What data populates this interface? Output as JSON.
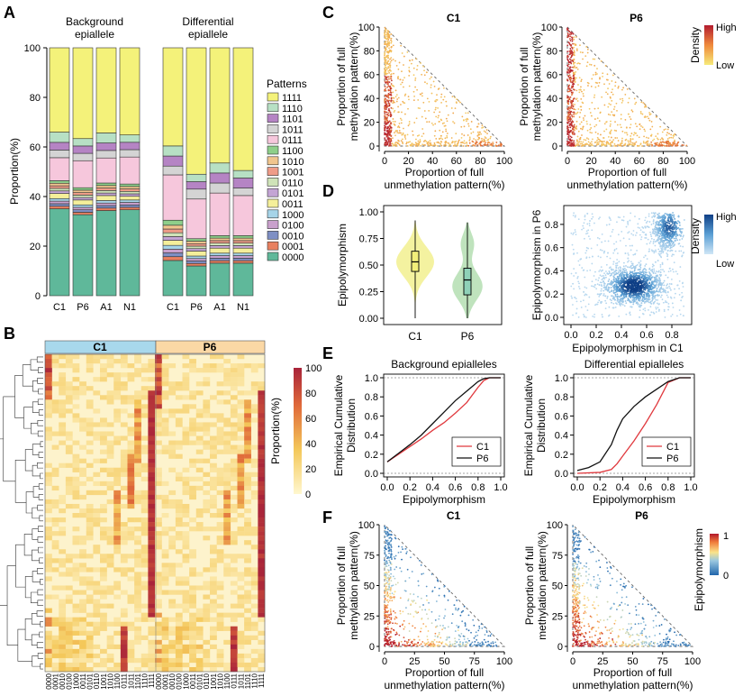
{
  "figure": {
    "panel_labels": [
      "A",
      "B",
      "C",
      "D",
      "E",
      "F"
    ]
  },
  "panel_a": {
    "titles": [
      "Background epiallele",
      "Differential epiallele"
    ],
    "ylabel": "Proportion(%)",
    "yticks": [
      "0",
      "20",
      "40",
      "60",
      "80",
      "100"
    ],
    "samples": [
      "C1",
      "P6",
      "A1",
      "N1"
    ],
    "legend_title": "Patterns",
    "patterns": [
      "0000",
      "0001",
      "0010",
      "0100",
      "1000",
      "0011",
      "0101",
      "0110",
      "1001",
      "1010",
      "1100",
      "0111",
      "1011",
      "1101",
      "1110",
      "1111"
    ],
    "colors": [
      "#5fb89a",
      "#e8805f",
      "#7e8fc4",
      "#c9a0cc",
      "#a6d4e8",
      "#f5ef9a",
      "#c3a4d4",
      "#cfe3b8",
      "#ef9c88",
      "#f0c58e",
      "#8ecf8a",
      "#f6c7dc",
      "#d4d4d4",
      "#b584c4",
      "#b7e0c4",
      "#f4f27a"
    ]
  },
  "panel_b": {
    "groups": [
      "C1",
      "P6"
    ],
    "group_colors": [
      "#a8d8ec",
      "#fbd8a5"
    ],
    "legend_title": "Proportion(%)",
    "legend_ticks": [
      "0",
      "20",
      "40",
      "60",
      "80",
      "100"
    ],
    "col_labels": [
      "0000",
      "0001",
      "0010",
      "0100",
      "1000",
      "0011",
      "0101",
      "0110",
      "1001",
      "1010",
      "1100",
      "0111",
      "1011",
      "1101",
      "1110",
      "1111"
    ]
  },
  "panel_c": {
    "titles": [
      "C1",
      "P6"
    ],
    "ylabel": [
      "Proportion of full",
      "methylation pattern(%)"
    ],
    "xlabel": [
      "Proportion of full",
      "unmethylation pattern(%)"
    ],
    "ticks": [
      "0",
      "20",
      "40",
      "60",
      "80",
      "100"
    ],
    "legend_title": "Density",
    "legend_high": "High",
    "legend_low": "Low"
  },
  "panel_d": {
    "violin_ylabel": "Epipolymorphism",
    "violin_yticks": [
      "0.00",
      "0.25",
      "0.50",
      "0.75",
      "1.00"
    ],
    "violin_groups": [
      "C1",
      "P6"
    ],
    "scatter_xlabel": "Epipolymorphism in C1",
    "scatter_ylabel": "Epipolymorphism in P6",
    "scatter_ticks": [
      "0.0",
      "0.2",
      "0.4",
      "0.6",
      "0.8"
    ],
    "legend_title": "Density",
    "legend_high": "High",
    "legend_low": "Low"
  },
  "panel_e": {
    "titles": [
      "Background epialleles",
      "Differential epialleles"
    ],
    "ylabel": [
      "Empirical Cumulative",
      "Distribution"
    ],
    "xlabel": "Epipolymorphism",
    "xticks": [
      "0.0",
      "0.2",
      "0.4",
      "0.6",
      "0.8",
      "1.0"
    ],
    "yticks": [
      "0.0",
      "0.2",
      "0.4",
      "0.6",
      "0.8",
      "1.0"
    ],
    "legend": [
      "C1",
      "P6"
    ],
    "line_colors": [
      "#e0393e",
      "#111111"
    ]
  },
  "panel_f": {
    "titles": [
      "C1",
      "P6"
    ],
    "ylabel": [
      "Proportion of full",
      "methylation pattern(%)"
    ],
    "xlabel": [
      "Proportion of full",
      "unmethylation pattern(%)"
    ],
    "ticks": [
      "0",
      "25",
      "50",
      "75",
      "100"
    ],
    "legend_title": "Epipolymorphism",
    "legend_ticks": [
      "0",
      "1"
    ]
  },
  "chart_data": [
    {
      "type": "bar",
      "title": "Background epiallele",
      "categories": [
        "C1",
        "P6",
        "A1",
        "N1"
      ],
      "ylabel": "Proportion(%)",
      "ylim": [
        0,
        100
      ],
      "stacked": true,
      "series": [
        {
          "name": "0000",
          "values": [
            34,
            33,
            34,
            35
          ]
        },
        {
          "name": "0001",
          "values": [
            1,
            1,
            1,
            1
          ]
        },
        {
          "name": "0010",
          "values": [
            1,
            1,
            1,
            1
          ]
        },
        {
          "name": "0100",
          "values": [
            1,
            1,
            1,
            1
          ]
        },
        {
          "name": "1000",
          "values": [
            1,
            1,
            1,
            1
          ]
        },
        {
          "name": "0011",
          "values": [
            2,
            2,
            2,
            1.5
          ]
        },
        {
          "name": "0101",
          "values": [
            1,
            1,
            1,
            1
          ]
        },
        {
          "name": "0110",
          "values": [
            1,
            1,
            1,
            1
          ]
        },
        {
          "name": "1001",
          "values": [
            1,
            1,
            1,
            1
          ]
        },
        {
          "name": "1010",
          "values": [
            1,
            1,
            1,
            1
          ]
        },
        {
          "name": "1100",
          "values": [
            1,
            1,
            1,
            1
          ]
        },
        {
          "name": "0111",
          "values": [
            9,
            11,
            10,
            11
          ]
        },
        {
          "name": "1011",
          "values": [
            3,
            3,
            3,
            3
          ]
        },
        {
          "name": "1101",
          "values": [
            3,
            3,
            3,
            3
          ]
        },
        {
          "name": "1110",
          "values": [
            4,
            3,
            4,
            3
          ]
        },
        {
          "name": "1111",
          "values": [
            33,
            37,
            34,
            35.5
          ]
        }
      ]
    },
    {
      "type": "bar",
      "title": "Differential epiallele",
      "categories": [
        "C1",
        "P6",
        "A1",
        "N1"
      ],
      "ylabel": "Proportion(%)",
      "ylim": [
        0,
        100
      ],
      "stacked": true,
      "series": [
        {
          "name": "0000",
          "values": [
            14,
            12,
            13,
            13
          ]
        },
        {
          "name": "0001",
          "values": [
            1.5,
            1,
            1,
            1
          ]
        },
        {
          "name": "0010",
          "values": [
            1.5,
            1,
            1,
            1
          ]
        },
        {
          "name": "0100",
          "values": [
            1.5,
            1,
            1,
            1
          ]
        },
        {
          "name": "1000",
          "values": [
            1.5,
            1,
            1,
            1
          ]
        },
        {
          "name": "0011",
          "values": [
            2,
            2,
            2,
            2
          ]
        },
        {
          "name": "0101",
          "values": [
            1.5,
            1,
            1,
            1
          ]
        },
        {
          "name": "0110",
          "values": [
            1.5,
            1,
            1,
            1
          ]
        },
        {
          "name": "1001",
          "values": [
            1.5,
            1,
            1,
            1
          ]
        },
        {
          "name": "1010",
          "values": [
            1.5,
            1,
            1,
            1
          ]
        },
        {
          "name": "1100",
          "values": [
            2,
            1,
            1,
            1
          ]
        },
        {
          "name": "0111",
          "values": [
            18,
            16,
            17,
            16
          ]
        },
        {
          "name": "1011",
          "values": [
            3.5,
            4,
            4,
            3
          ]
        },
        {
          "name": "1101",
          "values": [
            4,
            3,
            4,
            4
          ]
        },
        {
          "name": "1110",
          "values": [
            4,
            3,
            4,
            3
          ]
        },
        {
          "name": "1111",
          "values": [
            39,
            51,
            46,
            49
          ]
        }
      ]
    },
    {
      "type": "line",
      "title": "Background epialleles",
      "xlabel": "Epipolymorphism",
      "ylabel": "Empirical Cumulative Distribution",
      "xlim": [
        0,
        1
      ],
      "ylim": [
        0,
        1
      ],
      "series": [
        {
          "name": "C1",
          "x": [
            0,
            0.1,
            0.2,
            0.3,
            0.4,
            0.5,
            0.6,
            0.7,
            0.8,
            0.85,
            0.9,
            1.0
          ],
          "values": [
            0.12,
            0.2,
            0.28,
            0.36,
            0.45,
            0.53,
            0.63,
            0.74,
            0.9,
            0.97,
            1.0,
            1.0
          ]
        },
        {
          "name": "P6",
          "x": [
            0,
            0.1,
            0.2,
            0.3,
            0.4,
            0.5,
            0.6,
            0.7,
            0.8,
            0.85,
            0.9,
            1.0
          ],
          "values": [
            0.12,
            0.21,
            0.3,
            0.4,
            0.52,
            0.64,
            0.76,
            0.86,
            0.96,
            0.99,
            1.0,
            1.0
          ]
        }
      ]
    },
    {
      "type": "line",
      "title": "Differential epialleles",
      "xlabel": "Epipolymorphism",
      "ylabel": "Empirical Cumulative Distribution",
      "xlim": [
        0,
        1
      ],
      "ylim": [
        0,
        1
      ],
      "series": [
        {
          "name": "C1",
          "x": [
            0,
            0.2,
            0.3,
            0.35,
            0.4,
            0.5,
            0.6,
            0.7,
            0.8,
            0.9,
            1.0
          ],
          "values": [
            0.0,
            0.01,
            0.04,
            0.1,
            0.18,
            0.34,
            0.52,
            0.72,
            0.95,
            1.0,
            1.0
          ]
        },
        {
          "name": "P6",
          "x": [
            0,
            0.1,
            0.2,
            0.3,
            0.35,
            0.4,
            0.5,
            0.6,
            0.7,
            0.8,
            0.9,
            1.0
          ],
          "values": [
            0.03,
            0.06,
            0.12,
            0.3,
            0.45,
            0.57,
            0.7,
            0.8,
            0.88,
            0.96,
            1.0,
            1.0
          ]
        }
      ]
    },
    {
      "type": "violin",
      "title": "Epipolymorphism",
      "categories": [
        "C1",
        "P6"
      ],
      "ylim": [
        0,
        1
      ],
      "median": [
        0.53,
        0.36
      ],
      "q1": [
        0.44,
        0.22
      ],
      "q3": [
        0.63,
        0.47
      ],
      "min": [
        0.0,
        0.0
      ],
      "max": [
        0.92,
        0.9
      ]
    }
  ]
}
